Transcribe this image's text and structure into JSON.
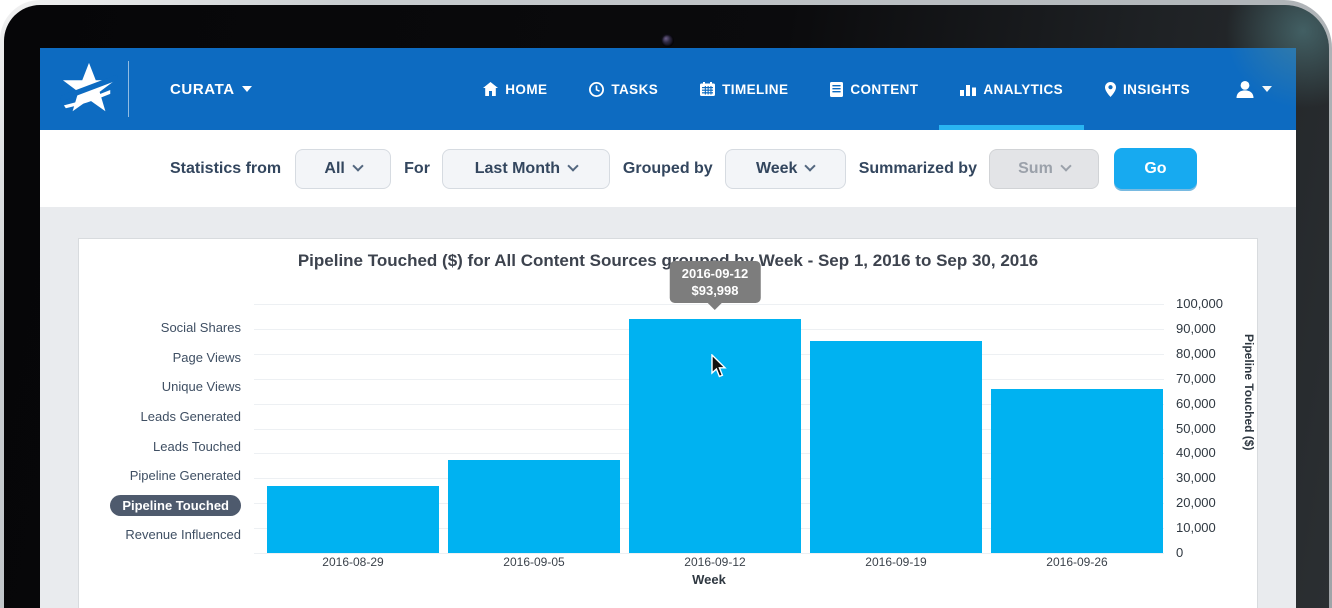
{
  "nav": {
    "brand": "CURATA",
    "items": [
      {
        "label": "HOME",
        "icon": "home-icon",
        "active": false
      },
      {
        "label": "TASKS",
        "icon": "clock-icon",
        "active": false
      },
      {
        "label": "TIMELINE",
        "icon": "calendar-icon",
        "active": false
      },
      {
        "label": "CONTENT",
        "icon": "document-icon",
        "active": false
      },
      {
        "label": "ANALYTICS",
        "icon": "bar-chart-icon",
        "active": true
      },
      {
        "label": "INSIGHTS",
        "icon": "map-pin-icon",
        "active": false
      }
    ],
    "user_icon": "user-icon"
  },
  "filters": {
    "statistics_from_label": "Statistics from",
    "statistics_from_value": "All",
    "for_label": "For",
    "period_value": "Last Month",
    "grouped_by_label": "Grouped by",
    "grouped_by_value": "Week",
    "summarized_by_label": "Summarized by",
    "summarized_by_value": "Sum",
    "summarized_by_disabled": true,
    "go_label": "Go"
  },
  "metric_menu": {
    "items": [
      "Social Shares",
      "Page Views",
      "Unique Views",
      "Leads Generated",
      "Leads Touched",
      "Pipeline Generated",
      "Pipeline Touched",
      "Revenue Influenced"
    ],
    "selected": "Pipeline Touched"
  },
  "chart_data": {
    "type": "bar",
    "title": "Pipeline Touched ($) for All Content Sources grouped by Week - Sep 1, 2016 to Sep 30, 2016",
    "categories": [
      "2016-08-29",
      "2016-09-05",
      "2016-09-12",
      "2016-09-19",
      "2016-09-26"
    ],
    "values": [
      27000,
      37500,
      93998,
      85000,
      66000
    ],
    "xlabel": "Week",
    "ylabel": "Pipeline Touched ($)",
    "ylim": [
      0,
      100000
    ],
    "ytick_step": 10000,
    "ytick_labels": [
      "100,000",
      "90,000",
      "80,000",
      "70,000",
      "60,000",
      "50,000",
      "40,000",
      "30,000",
      "20,000",
      "10,000",
      "0"
    ],
    "grid": true,
    "legend": "none",
    "tooltip": {
      "date": "2016-09-12",
      "value": "$93,998"
    }
  },
  "colors": {
    "nav_blue": "#0d6bc1",
    "active_tab_underline": "#29b5f2",
    "bar_color": "#00b2f1",
    "go_button": "#17aaf0",
    "selected_pill": "#4e5a6d",
    "page_background": "#e9ebee",
    "tooltip_background": "#7d7d7d"
  }
}
